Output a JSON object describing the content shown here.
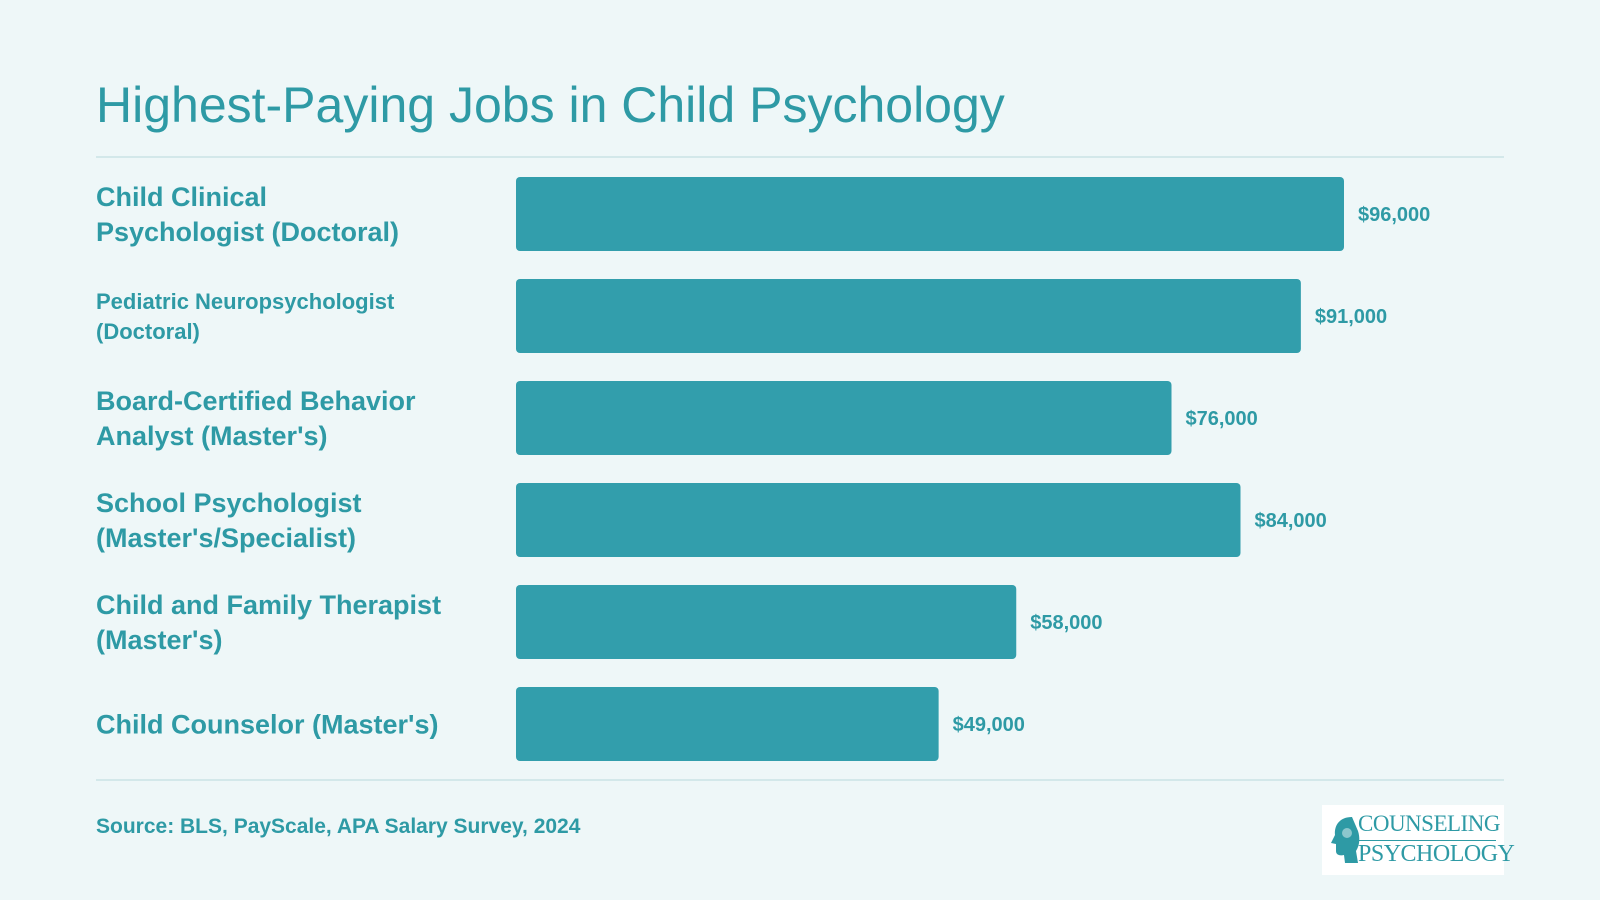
{
  "title": "Highest-Paying Jobs in Child Psychology",
  "source": "Source: BLS, PayScale, APA Salary Survey, 2024",
  "logo": {
    "line1": "COUNSELING",
    "line2": "PSYCHOLOGY"
  },
  "colors": {
    "bar": "#329eac",
    "text": "#2e9aa5",
    "background": "#eef7f8"
  },
  "chart_data": {
    "type": "bar",
    "orientation": "horizontal",
    "title": "Highest-Paying Jobs in Child Psychology",
    "categories": [
      [
        "Child Clinical",
        "Psychologist (Doctoral)"
      ],
      [
        "Pediatric Neuropsychologist",
        "(Doctoral)"
      ],
      [
        "Board-Certified Behavior",
        "Analyst (Master's)"
      ],
      [
        "School Psychologist",
        "(Master's/Specialist)"
      ],
      [
        "Child and Family Therapist",
        "(Master's)"
      ],
      [
        "Child Counselor (Master's)"
      ]
    ],
    "values": [
      96000,
      91000,
      76000,
      84000,
      58000,
      49000
    ],
    "value_labels": [
      "$96,000",
      "$91,000",
      "$76,000",
      "$84,000",
      "$58,000",
      "$49,000"
    ],
    "xlim": [
      0,
      96000
    ],
    "grid": false,
    "legend": "none"
  }
}
